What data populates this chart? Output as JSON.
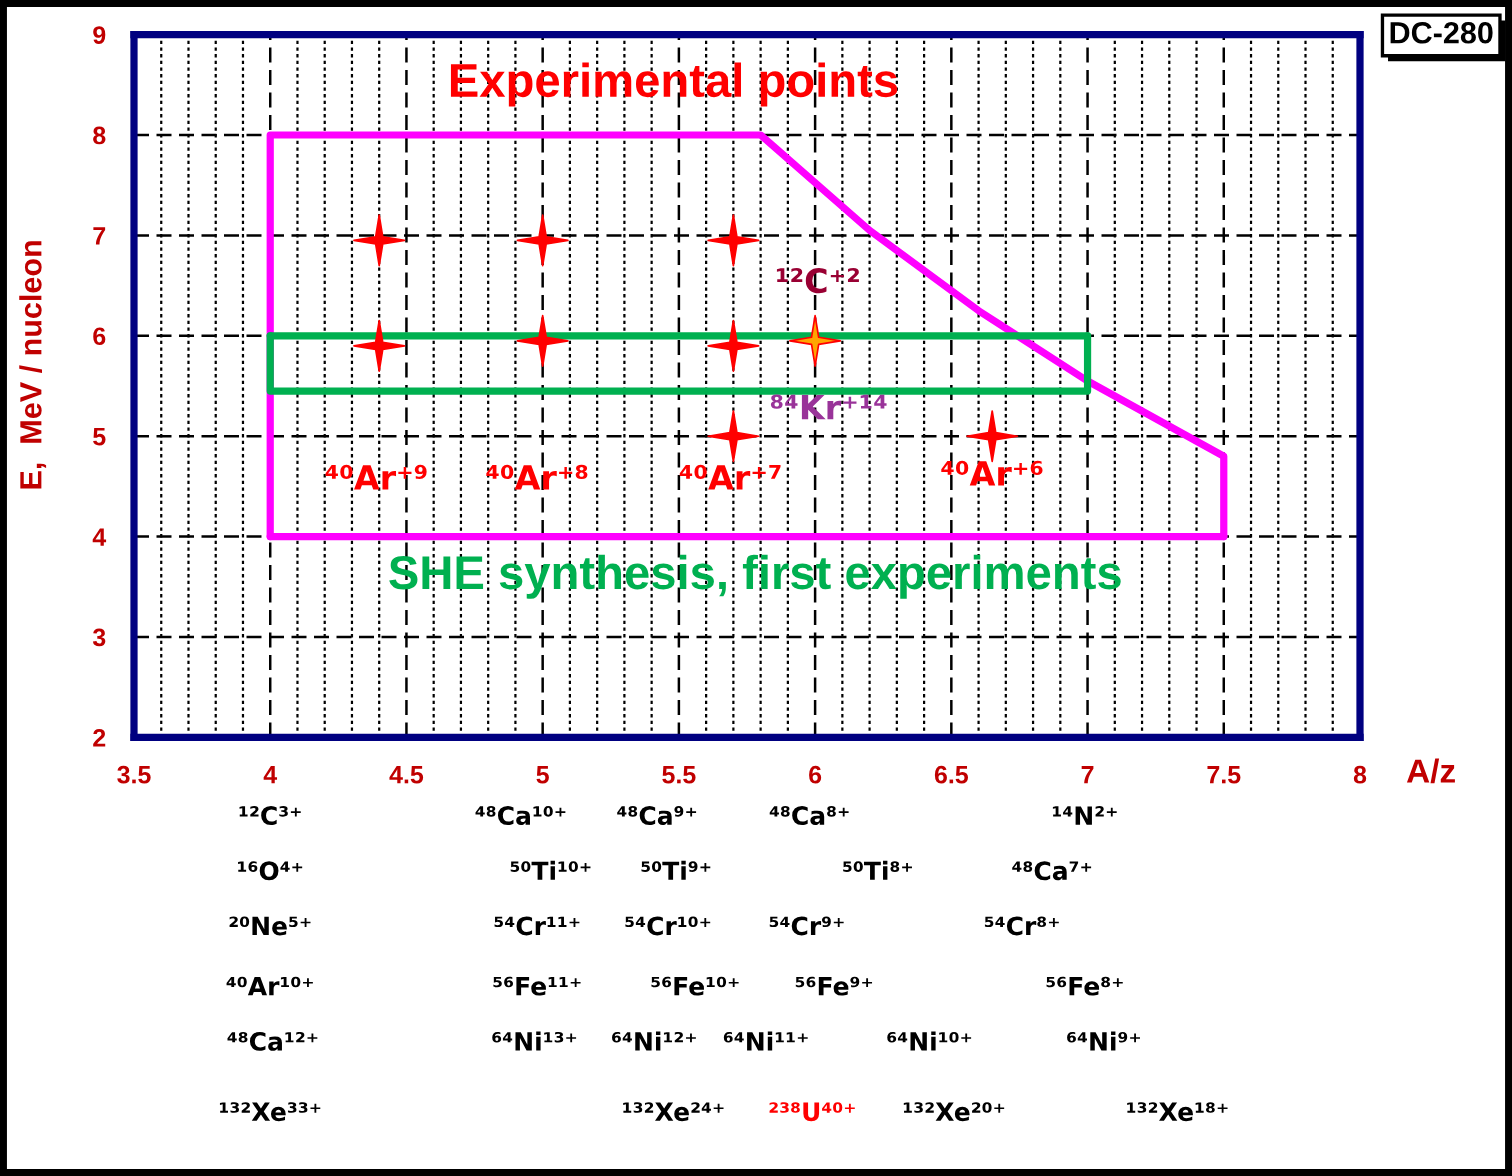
{
  "chart_data": {
    "type": "scatter",
    "title": "DC-280",
    "xlabel": "A/z",
    "ylabel": "E,  MeV / nucleon",
    "xlim": [
      3.5,
      8
    ],
    "ylim": [
      2,
      9
    ],
    "xticks": [
      3.5,
      {
        "value": 3.6,
        "label": null
      },
      {
        "value": 3.7,
        "label": null
      },
      {
        "value": 3.8,
        "label": null
      },
      {
        "value": 3.9,
        "label": null
      },
      4,
      {
        "value": 4.1,
        "label": null
      },
      {
        "value": 4.2,
        "label": null
      },
      {
        "value": 4.3,
        "label": null
      },
      {
        "value": 4.4,
        "label": null
      },
      4.5,
      {
        "value": 4.6,
        "label": null
      },
      {
        "value": 4.7,
        "label": null
      },
      {
        "value": 4.8,
        "label": null
      },
      {
        "value": 4.9,
        "label": null
      },
      5,
      {
        "value": 5.1,
        "label": null
      },
      {
        "value": 5.2,
        "label": null
      },
      {
        "value": 5.3,
        "label": null
      },
      {
        "value": 5.4,
        "label": null
      },
      5.5,
      {
        "value": 5.6,
        "label": null
      },
      {
        "value": 5.7,
        "label": null
      },
      {
        "value": 5.8,
        "label": null
      },
      {
        "value": 5.9,
        "label": null
      },
      6,
      {
        "value": 6.1,
        "label": null
      },
      {
        "value": 6.2,
        "label": null
      },
      {
        "value": 6.3,
        "label": null
      },
      {
        "value": 6.4,
        "label": null
      },
      6.5,
      {
        "value": 6.6,
        "label": null
      },
      {
        "value": 6.7,
        "label": null
      },
      {
        "value": 6.8,
        "label": null
      },
      {
        "value": 6.9,
        "label": null
      },
      7,
      {
        "value": 7.1,
        "label": null
      },
      {
        "value": 7.2,
        "label": null
      },
      {
        "value": 7.3,
        "label": null
      },
      {
        "value": 7.4,
        "label": null
      },
      7.5,
      {
        "value": 7.6,
        "label": null
      },
      {
        "value": 7.7,
        "label": null
      },
      {
        "value": 7.8,
        "label": null
      },
      {
        "value": 7.9,
        "label": null
      },
      8
    ],
    "yticks": [
      2,
      3,
      4,
      5,
      6,
      7,
      8,
      9
    ],
    "grid": true,
    "series": [
      {
        "type": "line",
        "color": "#ff00ff",
        "x": [
          4,
          4,
          5.8,
          6.2,
          6.6,
          7.0,
          7.5,
          7.5
        ],
        "values": [
          4,
          8,
          8,
          7.05,
          6.25,
          5.55,
          4.8,
          4
        ]
      },
      {
        "type": "line",
        "color": "#ff00ff",
        "x": [
          4,
          7.5
        ],
        "values": [
          4,
          4
        ]
      },
      {
        "type": "line",
        "color": "#00b050",
        "x": [
          4,
          4,
          7,
          7
        ],
        "values": [
          6,
          5.45,
          5.45,
          6
        ]
      },
      {
        "type": "line",
        "color": "#00b050",
        "x": [
          4,
          7
        ],
        "values": [
          6,
          6
        ]
      },
      {
        "color": "#ff0000",
        "marker": "star",
        "colors": [
          "#ff0000",
          "#ff0000",
          "#ff0000",
          "#ff0000",
          "#ff0000",
          "#ff0000",
          "#ff0000",
          "#ffa500",
          "#ff0000"
        ],
        "x": [
          4.4,
          4.4,
          5,
          5,
          5.7,
          5.7,
          5.7,
          6,
          6.65
        ],
        "values": [
          6.95,
          5.9,
          6.95,
          5.95,
          6.95,
          5.9,
          5.0,
          5.95,
          5.0
        ]
      }
    ],
    "annotations": [
      "Experimental points",
      "SHE synthesis, first experiments",
      "⁴⁰Ar⁺⁹",
      "⁴⁰Ar⁺⁸",
      "⁴⁰Ar⁺⁷",
      "⁴⁰Ar⁺⁶",
      "¹²C⁺²",
      "⁸⁴Kr⁺¹⁴",
      "¹²C³⁺",
      "⁴⁸Ca¹⁰⁺",
      "⁴⁸Ca⁹⁺",
      "⁴⁸Ca⁸⁺",
      "¹⁴N²⁺",
      "¹⁶O⁴⁺",
      "⁵⁰Ti¹⁰⁺",
      "⁵⁰Ti⁹⁺",
      "⁵⁰Ti⁸⁺",
      "⁴⁸Ca⁷⁺",
      "²⁰Ne⁵⁺",
      "⁵⁴Cr¹¹⁺",
      "⁵⁴Cr¹⁰⁺",
      "⁵⁴Cr⁹⁺",
      "⁵⁴Cr⁸⁺",
      "⁴⁰Ar¹⁰⁺",
      "⁵⁶Fe¹¹⁺",
      "⁵⁶Fe¹⁰⁺",
      "⁵⁶Fe⁹⁺",
      "⁵⁶Fe⁸⁺",
      "⁴⁸Ca¹²⁺",
      "⁶⁴Ni¹³⁺",
      "⁶⁴Ni¹²⁺",
      "⁶⁴Ni¹¹⁺",
      "⁶⁴Ni¹⁰⁺",
      "⁶⁴Ni⁹⁺",
      "¹³²Xe³³⁺",
      "¹³²Xe²⁴⁺",
      "²³⁸U⁴⁰⁺",
      "¹³²Xe²⁰⁺",
      "¹³²Xe¹⁸⁺"
    ]
  }
}
